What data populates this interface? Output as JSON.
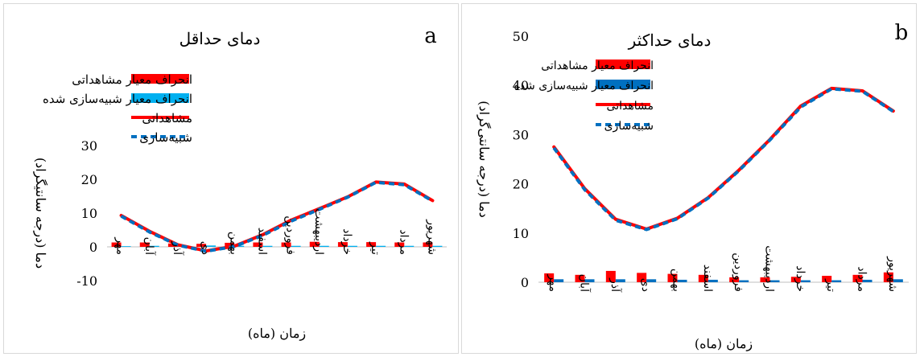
{
  "chart_data": [
    {
      "panel_letter": "a",
      "type": "bar+line",
      "title": "دمای حداقل",
      "xlabel": "زمان (ماه)",
      "ylabel": "دما (درجه سانتیگراد)",
      "ylim": [
        -10,
        30
      ],
      "yticks": [
        -10,
        0,
        10,
        20,
        30
      ],
      "grid": false,
      "legend_position": "top-left",
      "categories": [
        "مهر",
        "آبان",
        "آذر",
        "دی",
        "بهمن",
        "اسفند",
        "فروردین",
        "اردیبهشت",
        "خرداد",
        "تیر",
        "مرداد",
        "شهریور"
      ],
      "series": [
        {
          "name": "انحراف معیار مشاهداتی",
          "kind": "bar",
          "color": "#ff0000",
          "values": [
            1.3,
            1.3,
            1.0,
            0.9,
            1.2,
            1.3,
            1.3,
            1.5,
            1.4,
            1.4,
            1.3,
            1.3
          ]
        },
        {
          "name": "انحراف معیار شبیه‌سازی شده",
          "kind": "bar",
          "color": "#00b0f0",
          "values": [
            0.2,
            0.3,
            0.3,
            0.4,
            0.3,
            0.3,
            0.3,
            0.3,
            0.3,
            0.3,
            0.3,
            0.3
          ]
        },
        {
          "name": "مشاهداتی",
          "kind": "line",
          "color": "#ff0000",
          "values": [
            9.3,
            4.6,
            0.6,
            -1.2,
            0.2,
            3.6,
            7.9,
            11.3,
            14.8,
            19.2,
            18.6,
            13.7
          ]
        },
        {
          "name": "شبیه‌سازی",
          "kind": "line-dashed",
          "color": "#0070c0",
          "values": [
            9.1,
            4.4,
            0.5,
            -1.3,
            0.1,
            3.4,
            7.6,
            11.1,
            14.7,
            19.1,
            18.4,
            13.6
          ]
        }
      ]
    },
    {
      "panel_letter": "b",
      "type": "bar+line",
      "title": "دمای حداکثر",
      "xlabel": "زمان (ماه)",
      "ylabel": "دما (درجه سانتی‌گراد)",
      "ylim": [
        0,
        50
      ],
      "yticks": [
        0,
        10,
        20,
        30,
        40,
        50
      ],
      "grid": false,
      "legend_position": "top-center",
      "categories": [
        "مهر",
        "آبان",
        "آذر",
        "دی",
        "بهمن",
        "اسفند",
        "فروردین",
        "اردیبهشت",
        "خرداد",
        "تیر",
        "مرداد",
        "شهریور"
      ],
      "series": [
        {
          "name": "انحراف معیار مشاهداتی",
          "kind": "bar",
          "color": "#ff0000",
          "values": [
            1.8,
            1.5,
            2.3,
            1.9,
            1.7,
            1.5,
            1.0,
            1.0,
            1.1,
            1.3,
            1.5,
            2.0
          ]
        },
        {
          "name": "انحراف معیار شبیه‌سازی شده",
          "kind": "bar",
          "color": "#0070c0",
          "values": [
            0.6,
            0.6,
            0.6,
            0.6,
            0.5,
            0.5,
            0.4,
            0.4,
            0.4,
            0.4,
            0.5,
            0.6
          ]
        },
        {
          "name": "مشاهداتی",
          "kind": "line",
          "color": "#ff0000",
          "values": [
            27.5,
            19.0,
            12.8,
            10.8,
            13.0,
            17.2,
            22.8,
            29.0,
            35.8,
            39.4,
            38.9,
            34.8
          ]
        },
        {
          "name": "شبیه‌سازی",
          "kind": "line-dashed",
          "color": "#0070c0",
          "values": [
            27.3,
            18.8,
            12.6,
            10.7,
            12.9,
            17.1,
            22.7,
            28.9,
            35.6,
            39.3,
            38.8,
            34.7
          ]
        }
      ]
    }
  ]
}
